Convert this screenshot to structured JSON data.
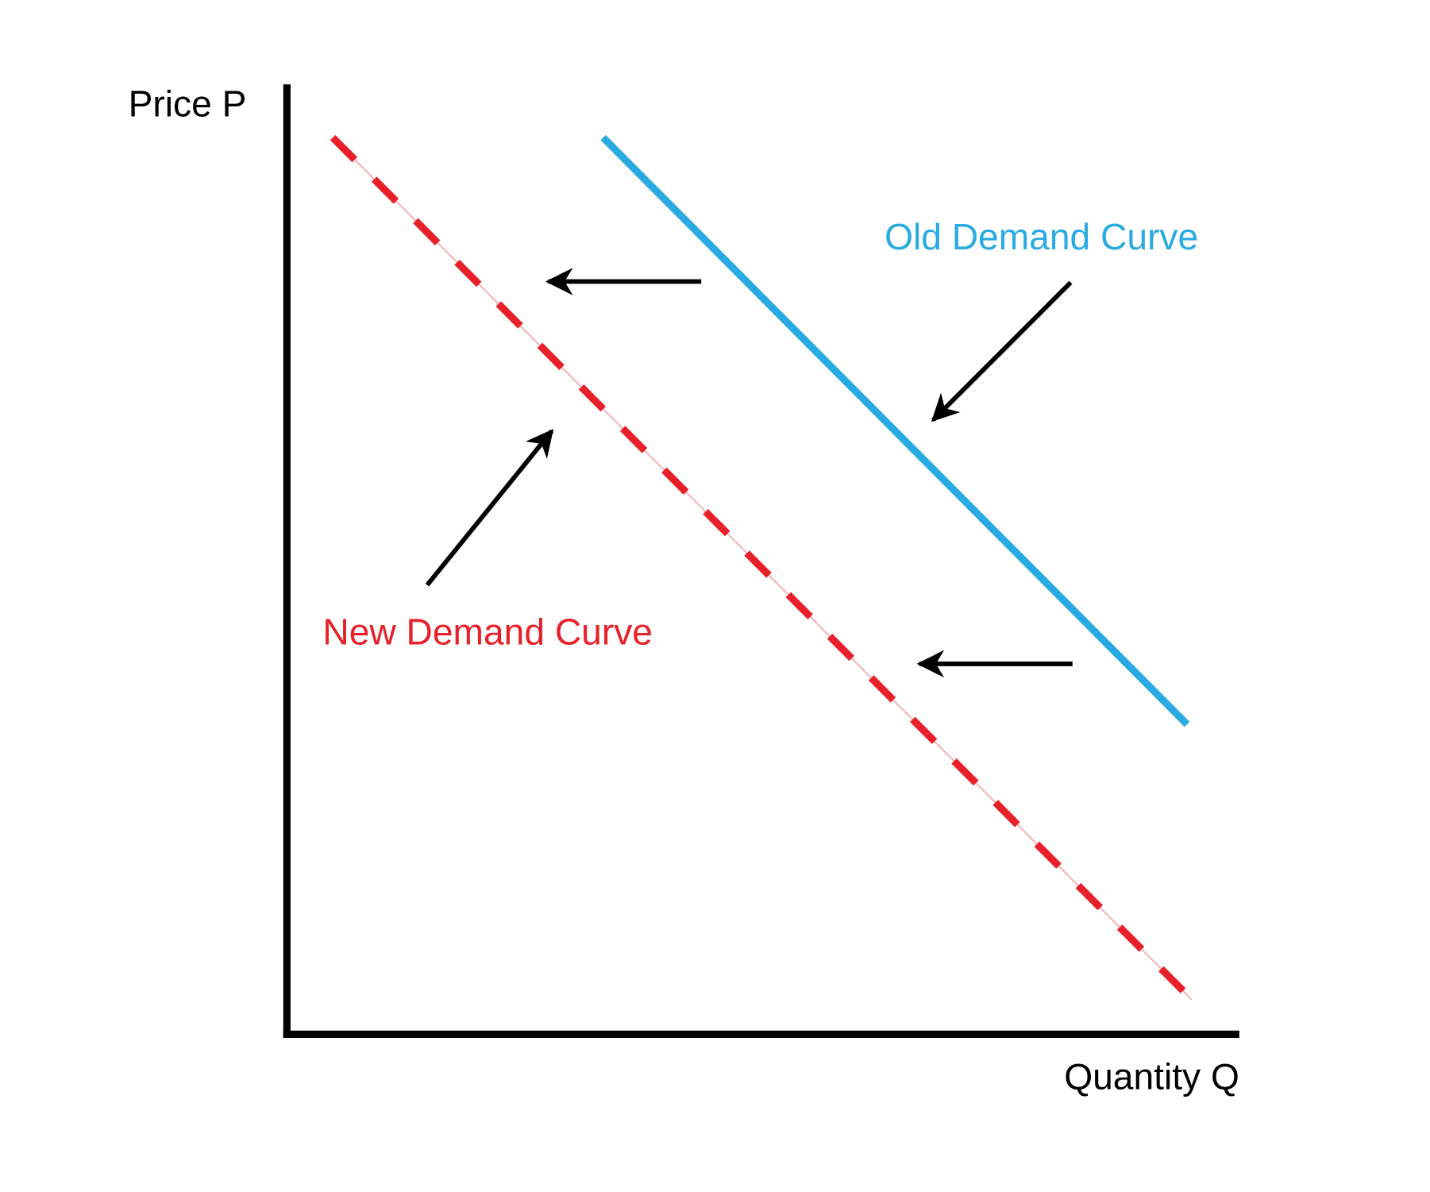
{
  "axes": {
    "y_label": "Price P",
    "x_label": "Quantity Q"
  },
  "curves": [
    {
      "label": "Old Demand Curve"
    },
    {
      "label": "New Demand Curve"
    }
  ]
}
